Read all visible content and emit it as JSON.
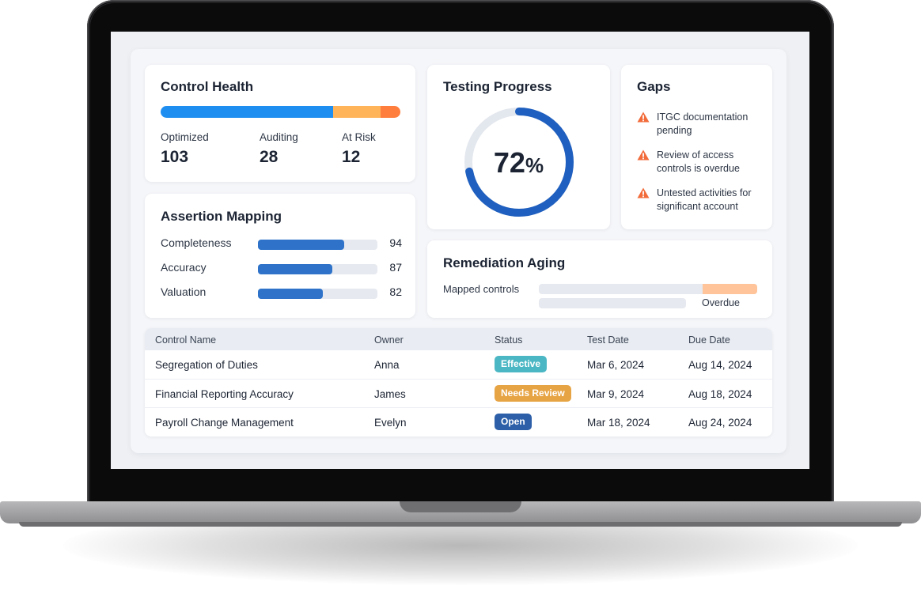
{
  "control_health": {
    "title": "Control Health",
    "bar": [
      {
        "value": 103,
        "color": "#1f8ef1"
      },
      {
        "value": 28,
        "color": "#ffb45a"
      },
      {
        "value": 12,
        "color": "#ff7d3d"
      }
    ],
    "stats": [
      {
        "label": "Optimized",
        "value": "103"
      },
      {
        "label": "Auditing",
        "value": "28"
      },
      {
        "label": "At Risk",
        "value": "12"
      }
    ]
  },
  "assertion_mapping": {
    "title": "Assertion Mapping",
    "rows": [
      {
        "label": "Completeness",
        "value": "94",
        "percent": 72
      },
      {
        "label": "Accuracy",
        "value": "87",
        "percent": 62
      },
      {
        "label": "Valuation",
        "value": "82",
        "percent": 54
      }
    ]
  },
  "testing_progress": {
    "title": "Testing Progress",
    "value": "72",
    "unit": "%",
    "percent": 72,
    "ring_color": "#1f5fbf",
    "track_color": "#e3e7ee"
  },
  "gaps": {
    "title": "Gaps",
    "icon": "warning-icon",
    "icon_color": "#f26b3a",
    "items": [
      "ITGC documentation pending",
      "Review of access controls is overdue",
      "Untested activities for significant account"
    ]
  },
  "remediation_aging": {
    "title": "Remediation Aging",
    "mapped_label": "Mapped controls",
    "overdue_label": "Overdue",
    "overdue_fraction": 0.25
  },
  "table": {
    "columns": [
      "Control Name",
      "Owner",
      "Status",
      "Test Date",
      "Due Date"
    ],
    "rows": [
      {
        "name": "Segregation of Duties",
        "owner": "Anna",
        "status": "Effective",
        "status_color": "#4cb7c4",
        "test_date": "Mar 6, 2024",
        "due_date": "Aug 14, 2024"
      },
      {
        "name": "Financial Reporting Accuracy",
        "owner": "James",
        "status": "Needs Review",
        "status_color": "#e7a445",
        "test_date": "Mar 9, 2024",
        "due_date": "Aug 18, 2024"
      },
      {
        "name": "Payroll Change Management",
        "owner": "Evelyn",
        "status": "Open",
        "status_color": "#2c5fa8",
        "test_date": "Mar 18, 2024",
        "due_date": "Aug 24, 2024"
      }
    ]
  }
}
